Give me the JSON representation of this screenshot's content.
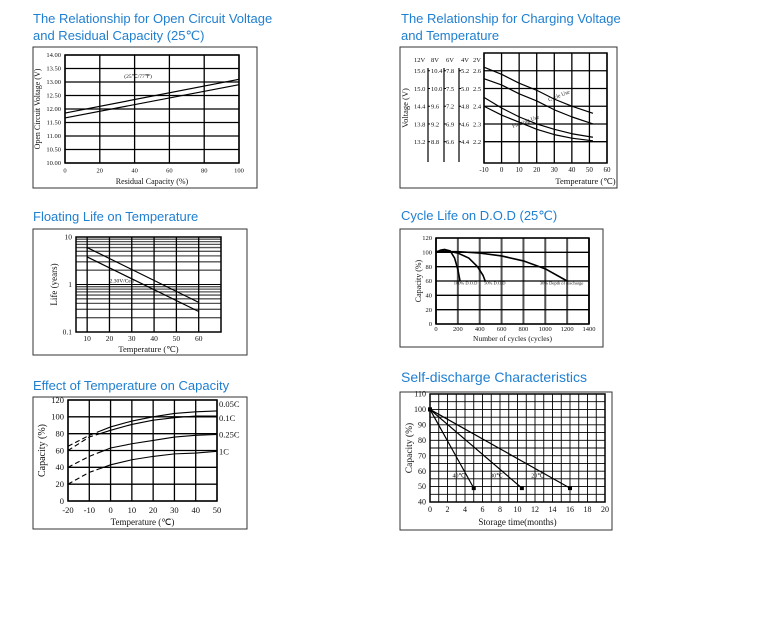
{
  "chart_data": [
    {
      "type": "line",
      "title": "The Relationship for Open Circuit Voltage and Residual Capacity (25℃)",
      "xlabel": "Residual Capacity (%)",
      "ylabel": "Open Circuit Voltage (V)",
      "xlim": [
        0,
        100
      ],
      "ylim": [
        10,
        14
      ],
      "xticks": [
        0,
        20,
        40,
        60,
        80,
        100
      ],
      "yticks": [
        "10.00",
        "10.50",
        "11.00",
        "11.50",
        "12.00",
        "12.50",
        "13.00",
        "13.50",
        "14.00"
      ],
      "grid": true,
      "series": [
        {
          "points": [
            [
              0,
              11.85
            ],
            [
              100,
              13.1
            ]
          ],
          "style": "solid"
        },
        {
          "points": [
            [
              0,
              11.67
            ],
            [
              100,
              12.9
            ]
          ],
          "style": "solid"
        }
      ],
      "annotations": [
        {
          "text": "(25℃/77℉)",
          "x": 42,
          "y": 13.15
        }
      ]
    },
    {
      "type": "line",
      "title": "The Relationship for Charging Voltage and Temperature",
      "xlabel": "Temperature (℃)",
      "ylabel": "Voltage (V)",
      "xlim": [
        -10,
        60
      ],
      "ylim": [
        2.08,
        2.7
      ],
      "xticks": [
        -10,
        0,
        10,
        20,
        30,
        40,
        50,
        60
      ],
      "yticks": [
        2.2,
        2.3,
        2.4,
        2.5,
        2.6
      ],
      "grid": true,
      "voltage_scales": [
        {
          "label": "12V",
          "values": [
            "15.6",
            "15.0",
            "14.4",
            "13.8",
            "13.2"
          ]
        },
        {
          "label": "8V",
          "values": [
            "10.4",
            "10.0",
            "9.6",
            "9.2",
            "8.8"
          ]
        },
        {
          "label": "6V",
          "values": [
            "7.8",
            "7.5",
            "7.2",
            "6.9",
            "6.6"
          ]
        },
        {
          "label": "4V",
          "values": [
            "5.2",
            "5.0",
            "4.8",
            "4.6",
            "4.4"
          ]
        },
        {
          "label": "2V",
          "values": [
            "2.6",
            "2.5",
            "2.4",
            "2.3",
            "2.2"
          ]
        }
      ],
      "series": [
        {
          "name": "Cycle Use",
          "points": [
            [
              -10,
              2.62
            ],
            [
              0,
              2.58
            ],
            [
              10,
              2.53
            ],
            [
              20,
              2.49
            ],
            [
              30,
              2.44
            ],
            [
              40,
              2.4
            ],
            [
              52,
              2.36
            ]
          ],
          "style": "solid"
        },
        {
          "name": "Cycle Use",
          "points": [
            [
              -10,
              2.555
            ],
            [
              0,
              2.52
            ],
            [
              10,
              2.47
            ],
            [
              20,
              2.43
            ],
            [
              30,
              2.38
            ],
            [
              40,
              2.34
            ],
            [
              52,
              2.3
            ]
          ],
          "style": "solid"
        },
        {
          "name": "Floating Use",
          "points": [
            [
              -10,
              2.45
            ],
            [
              0,
              2.39
            ],
            [
              10,
              2.34
            ],
            [
              20,
              2.3
            ],
            [
              30,
              2.27
            ],
            [
              40,
              2.245
            ],
            [
              52,
              2.225
            ]
          ],
          "style": "solid"
        },
        {
          "name": "Floating Use",
          "points": [
            [
              -10,
              2.4
            ],
            [
              0,
              2.35
            ],
            [
              10,
              2.31
            ],
            [
              20,
              2.27
            ],
            [
              30,
              2.24
            ],
            [
              40,
              2.22
            ],
            [
              52,
              2.205
            ]
          ],
          "style": "solid"
        }
      ],
      "annotations": [
        {
          "text": "Cycle Use",
          "x": 33,
          "y": 2.45,
          "rotate": -22
        },
        {
          "text": "Floating Use",
          "x": 14,
          "y": 2.305,
          "rotate": -20
        }
      ]
    },
    {
      "type": "line",
      "title": "Floating Life on Temperature",
      "xlabel": "Temperature (℃)",
      "ylabel": "Life (years)",
      "xlim": [
        5,
        70
      ],
      "ylim": [
        0.1,
        10
      ],
      "yscale": "log",
      "xticks": [
        10,
        20,
        30,
        40,
        50,
        60
      ],
      "yticks": [
        0.1,
        1,
        10
      ],
      "grid": true,
      "series": [
        {
          "points": [
            [
              10,
              6
            ],
            [
              60,
              0.42
            ]
          ],
          "style": "solid"
        },
        {
          "points": [
            [
              10,
              3.8
            ],
            [
              60,
              0.27
            ]
          ],
          "style": "solid"
        }
      ],
      "annotations": [
        {
          "text": "2.30V/Cell",
          "x": 25.5,
          "y": 1.1
        }
      ]
    },
    {
      "type": "line",
      "title": "Cycle Life on D.O.D (25℃)",
      "xlabel": "Number of cycles (cycles)",
      "ylabel": "Capacity (%)",
      "xlim": [
        0,
        1400
      ],
      "ylim": [
        0,
        120
      ],
      "xticks": [
        0,
        200,
        400,
        600,
        800,
        1000,
        1200,
        1400
      ],
      "yticks": [
        0,
        20,
        40,
        60,
        80,
        100,
        120
      ],
      "grid": true,
      "series": [
        {
          "name": "100% D.O.D",
          "points": [
            [
              0,
              100
            ],
            [
              40,
              103
            ],
            [
              80,
              104
            ],
            [
              130,
              102
            ],
            [
              170,
              92
            ],
            [
              200,
              76
            ],
            [
              220,
              60
            ]
          ],
          "style": "solid"
        },
        {
          "name": "50% D.O.D",
          "points": [
            [
              0,
              101
            ],
            [
              100,
              102
            ],
            [
              200,
              99
            ],
            [
              300,
              92
            ],
            [
              380,
              80
            ],
            [
              430,
              68
            ],
            [
              450,
              60
            ]
          ],
          "style": "solid"
        },
        {
          "name": "30% Depth of discharge",
          "points": [
            [
              0,
              101
            ],
            [
              200,
              101
            ],
            [
              400,
              99
            ],
            [
              600,
              95
            ],
            [
              800,
              88
            ],
            [
              1000,
              77
            ],
            [
              1200,
              60
            ]
          ],
          "style": "solid"
        }
      ],
      "annotations": [
        {
          "text": "100% D.O.D",
          "x": 190,
          "y": 55
        },
        {
          "text": "50% D.O.D",
          "x": 440,
          "y": 55
        },
        {
          "text": "30% Depth of discharge",
          "x": 950,
          "y": 55
        }
      ]
    },
    {
      "type": "line",
      "title": "Effect of Temperature on Capacity",
      "xlabel": "Temperature (℃)",
      "ylabel": "Capacity (%)",
      "xlim": [
        -20,
        50
      ],
      "ylim": [
        0,
        120
      ],
      "xticks": [
        -20,
        -10,
        0,
        10,
        20,
        30,
        40,
        50
      ],
      "yticks": [
        0,
        20,
        40,
        60,
        80,
        100,
        120
      ],
      "grid": true,
      "series": [
        {
          "name": "0.05C",
          "points": [
            [
              -20,
              65
            ],
            [
              -10,
              78
            ],
            [
              0,
              88
            ],
            [
              10,
              95
            ],
            [
              20,
              100
            ],
            [
              30,
              104
            ],
            [
              40,
              106
            ],
            [
              50,
              107
            ]
          ]
        },
        {
          "name": "0.1C",
          "points": [
            [
              -20,
              60
            ],
            [
              -10,
              76
            ],
            [
              0,
              84
            ],
            [
              10,
              91
            ],
            [
              20,
              96
            ],
            [
              30,
              99
            ],
            [
              40,
              101
            ],
            [
              50,
              101
            ]
          ]
        },
        {
          "name": "0.25C",
          "points": [
            [
              -20,
              40
            ],
            [
              -10,
              53
            ],
            [
              0,
              63
            ],
            [
              10,
              68
            ],
            [
              20,
              72
            ],
            [
              30,
              76
            ],
            [
              40,
              78
            ],
            [
              50,
              79
            ]
          ]
        },
        {
          "name": "1C",
          "points": [
            [
              -20,
              20
            ],
            [
              -10,
              34
            ],
            [
              0,
              43
            ],
            [
              10,
              49
            ],
            [
              20,
              53
            ],
            [
              30,
              56
            ],
            [
              40,
              57
            ],
            [
              50,
              59
            ]
          ]
        }
      ],
      "dashed_below_x": -5,
      "legend": "right"
    },
    {
      "type": "line",
      "title": "Self-discharge Characteristics",
      "xlabel": "Storage time(months)",
      "ylabel": "Capacity (%)",
      "xlim": [
        0,
        20
      ],
      "ylim": [
        40,
        110
      ],
      "xticks": [
        0,
        2,
        4,
        6,
        8,
        10,
        12,
        14,
        16,
        18,
        20
      ],
      "yticks": [
        40,
        50,
        60,
        70,
        80,
        90,
        100,
        110
      ],
      "grid": true,
      "series": [
        {
          "name": "40℃",
          "points": [
            [
              0,
              100
            ],
            [
              5,
              49
            ]
          ],
          "markers": true
        },
        {
          "name": "30℃",
          "points": [
            [
              0,
              100
            ],
            [
              10.5,
              49
            ]
          ],
          "markers": true
        },
        {
          "name": "20℃",
          "points": [
            [
              0,
              100
            ],
            [
              16,
              49
            ]
          ],
          "markers": true
        }
      ],
      "annotations": [
        {
          "text": "40℃",
          "x": 3.3,
          "y": 56
        },
        {
          "text": "30℃",
          "x": 7.6,
          "y": 56
        },
        {
          "text": "20℃",
          "x": 12.3,
          "y": 56
        }
      ]
    }
  ]
}
